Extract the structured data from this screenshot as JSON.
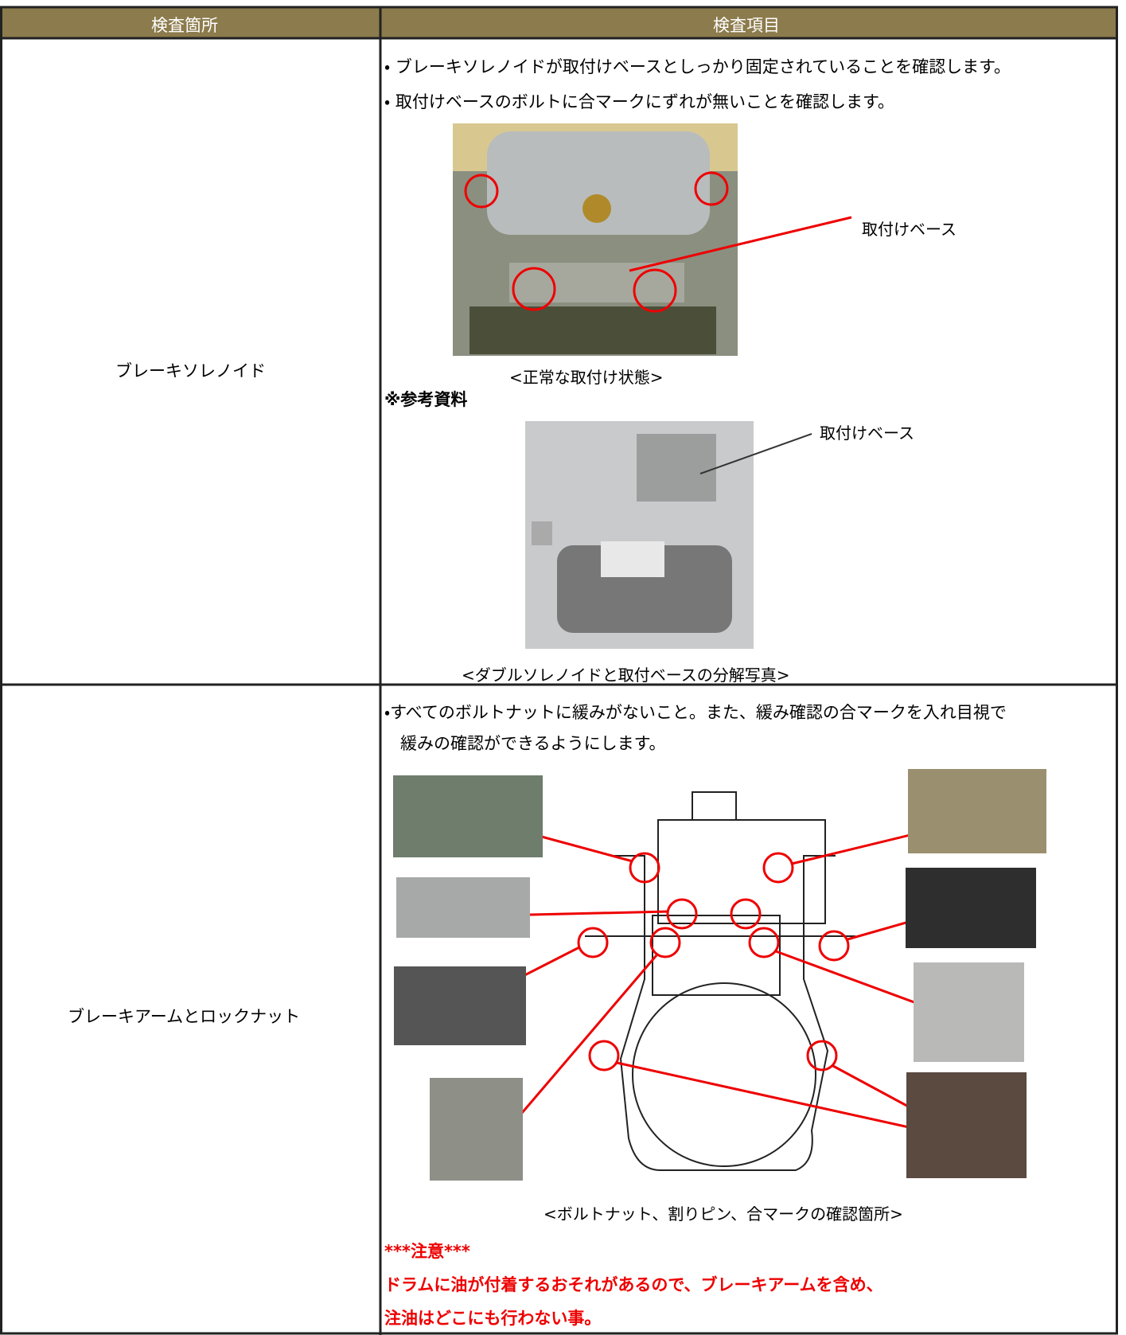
{
  "table": {
    "header": [
      "検査箇所",
      "検査項目"
    ],
    "rows": [
      {
        "location": "ブレーキソレノイド",
        "items": [
          "・ ブレーキソレノイドが取付けベースとしっかり固定されていることを確認します。",
          "・ 取付けベースのボルトに合マークにずれが無いことを確認します。"
        ],
        "figure": {
          "label": "取付けベース",
          "caption": "<正常な取付け状態>"
        },
        "reference": {
          "heading": "※参考資料",
          "label": "取付けベース",
          "caption": "<ダブルソレノイドと取付ベースの分解写真>"
        }
      },
      {
        "location": "ブレーキアームとロックナット",
        "items": [
          "・すべてのボルトナットに緩みがないこと。また、緩み確認の合マークを入れ目視で",
          "緩みの確認ができるようにします。"
        ],
        "caption": "<ボルトナット、割りピン、合マークの確認箇所>",
        "caution": [
          "***注意***",
          "ドラムに油が付着するおそれがあるので、ブレーキアームを含め、",
          "注油はどこにも行わない事。"
        ]
      }
    ]
  }
}
